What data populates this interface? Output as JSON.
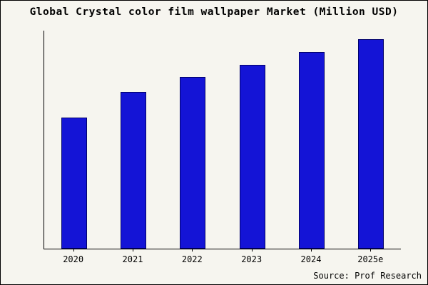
{
  "title": "Global Crystal color film wallpaper Market (Million USD)",
  "source": "Source: Prof Research",
  "colors": {
    "background": "#f6f5ef",
    "bar_fill": "#1414d6",
    "bar_border": "#00006b",
    "axis": "#000000"
  },
  "chart_data": {
    "type": "bar",
    "categories": [
      "2020",
      "2021",
      "2022",
      "2023",
      "2024",
      "2025e"
    ],
    "values": [
      62,
      74,
      81,
      87,
      93,
      99
    ],
    "title": "Global Crystal color film wallpaper Market (Million USD)",
    "xlabel": "",
    "ylabel": "",
    "ylim": [
      0,
      103
    ],
    "grid": false,
    "legend": false,
    "annotation": "Source: Prof Research"
  }
}
